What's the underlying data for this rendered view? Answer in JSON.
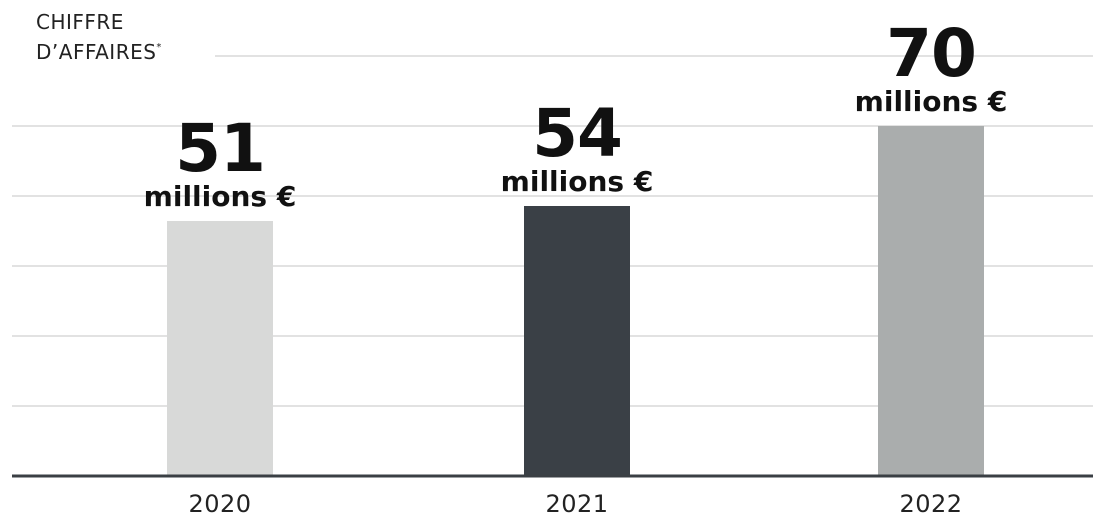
{
  "title": {
    "line1": "CHIFFRE",
    "line2": "D’AFFAIRES",
    "asterisk": "*"
  },
  "colors": {
    "grid": "#e2e2e2",
    "axis": "#3a3f44",
    "label": "#111111"
  },
  "chart_data": {
    "type": "bar",
    "categories": [
      "2020",
      "2021",
      "2022"
    ],
    "values": [
      51,
      54,
      70
    ],
    "value_labels": [
      "51",
      "54",
      "70"
    ],
    "unit_label": "millions €",
    "bar_colors": [
      "#d8d9d8",
      "#3a4046",
      "#aaadad"
    ],
    "title": "CHIFFRE D’AFFAIRES *",
    "xlabel": "",
    "ylabel": "",
    "ylim": [
      0,
      100
    ],
    "grid": true,
    "legend": "none"
  }
}
